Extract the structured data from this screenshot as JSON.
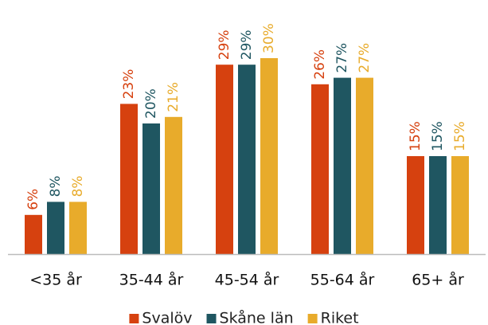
{
  "chart_data": {
    "type": "bar",
    "categories": [
      "<35 år",
      "35-44 år",
      "45-54 år",
      "55-64 år",
      "65+ år"
    ],
    "series": [
      {
        "name": "Svalöv",
        "color": "#d6410f",
        "values": [
          6,
          23,
          29,
          26,
          15
        ],
        "value_labels": [
          "6%",
          "23%",
          "29%",
          "26%",
          "15%"
        ]
      },
      {
        "name": "Skåne län",
        "color": "#1f5661",
        "values": [
          8,
          20,
          29,
          27,
          15
        ],
        "value_labels": [
          "8%",
          "20%",
          "29%",
          "27%",
          "15%"
        ]
      },
      {
        "name": "Riket",
        "color": "#e8ab2b",
        "values": [
          8,
          21,
          30,
          27,
          15
        ],
        "value_labels": [
          "8%",
          "21%",
          "30%",
          "27%",
          "15%"
        ]
      }
    ],
    "legend": "bottom"
  }
}
